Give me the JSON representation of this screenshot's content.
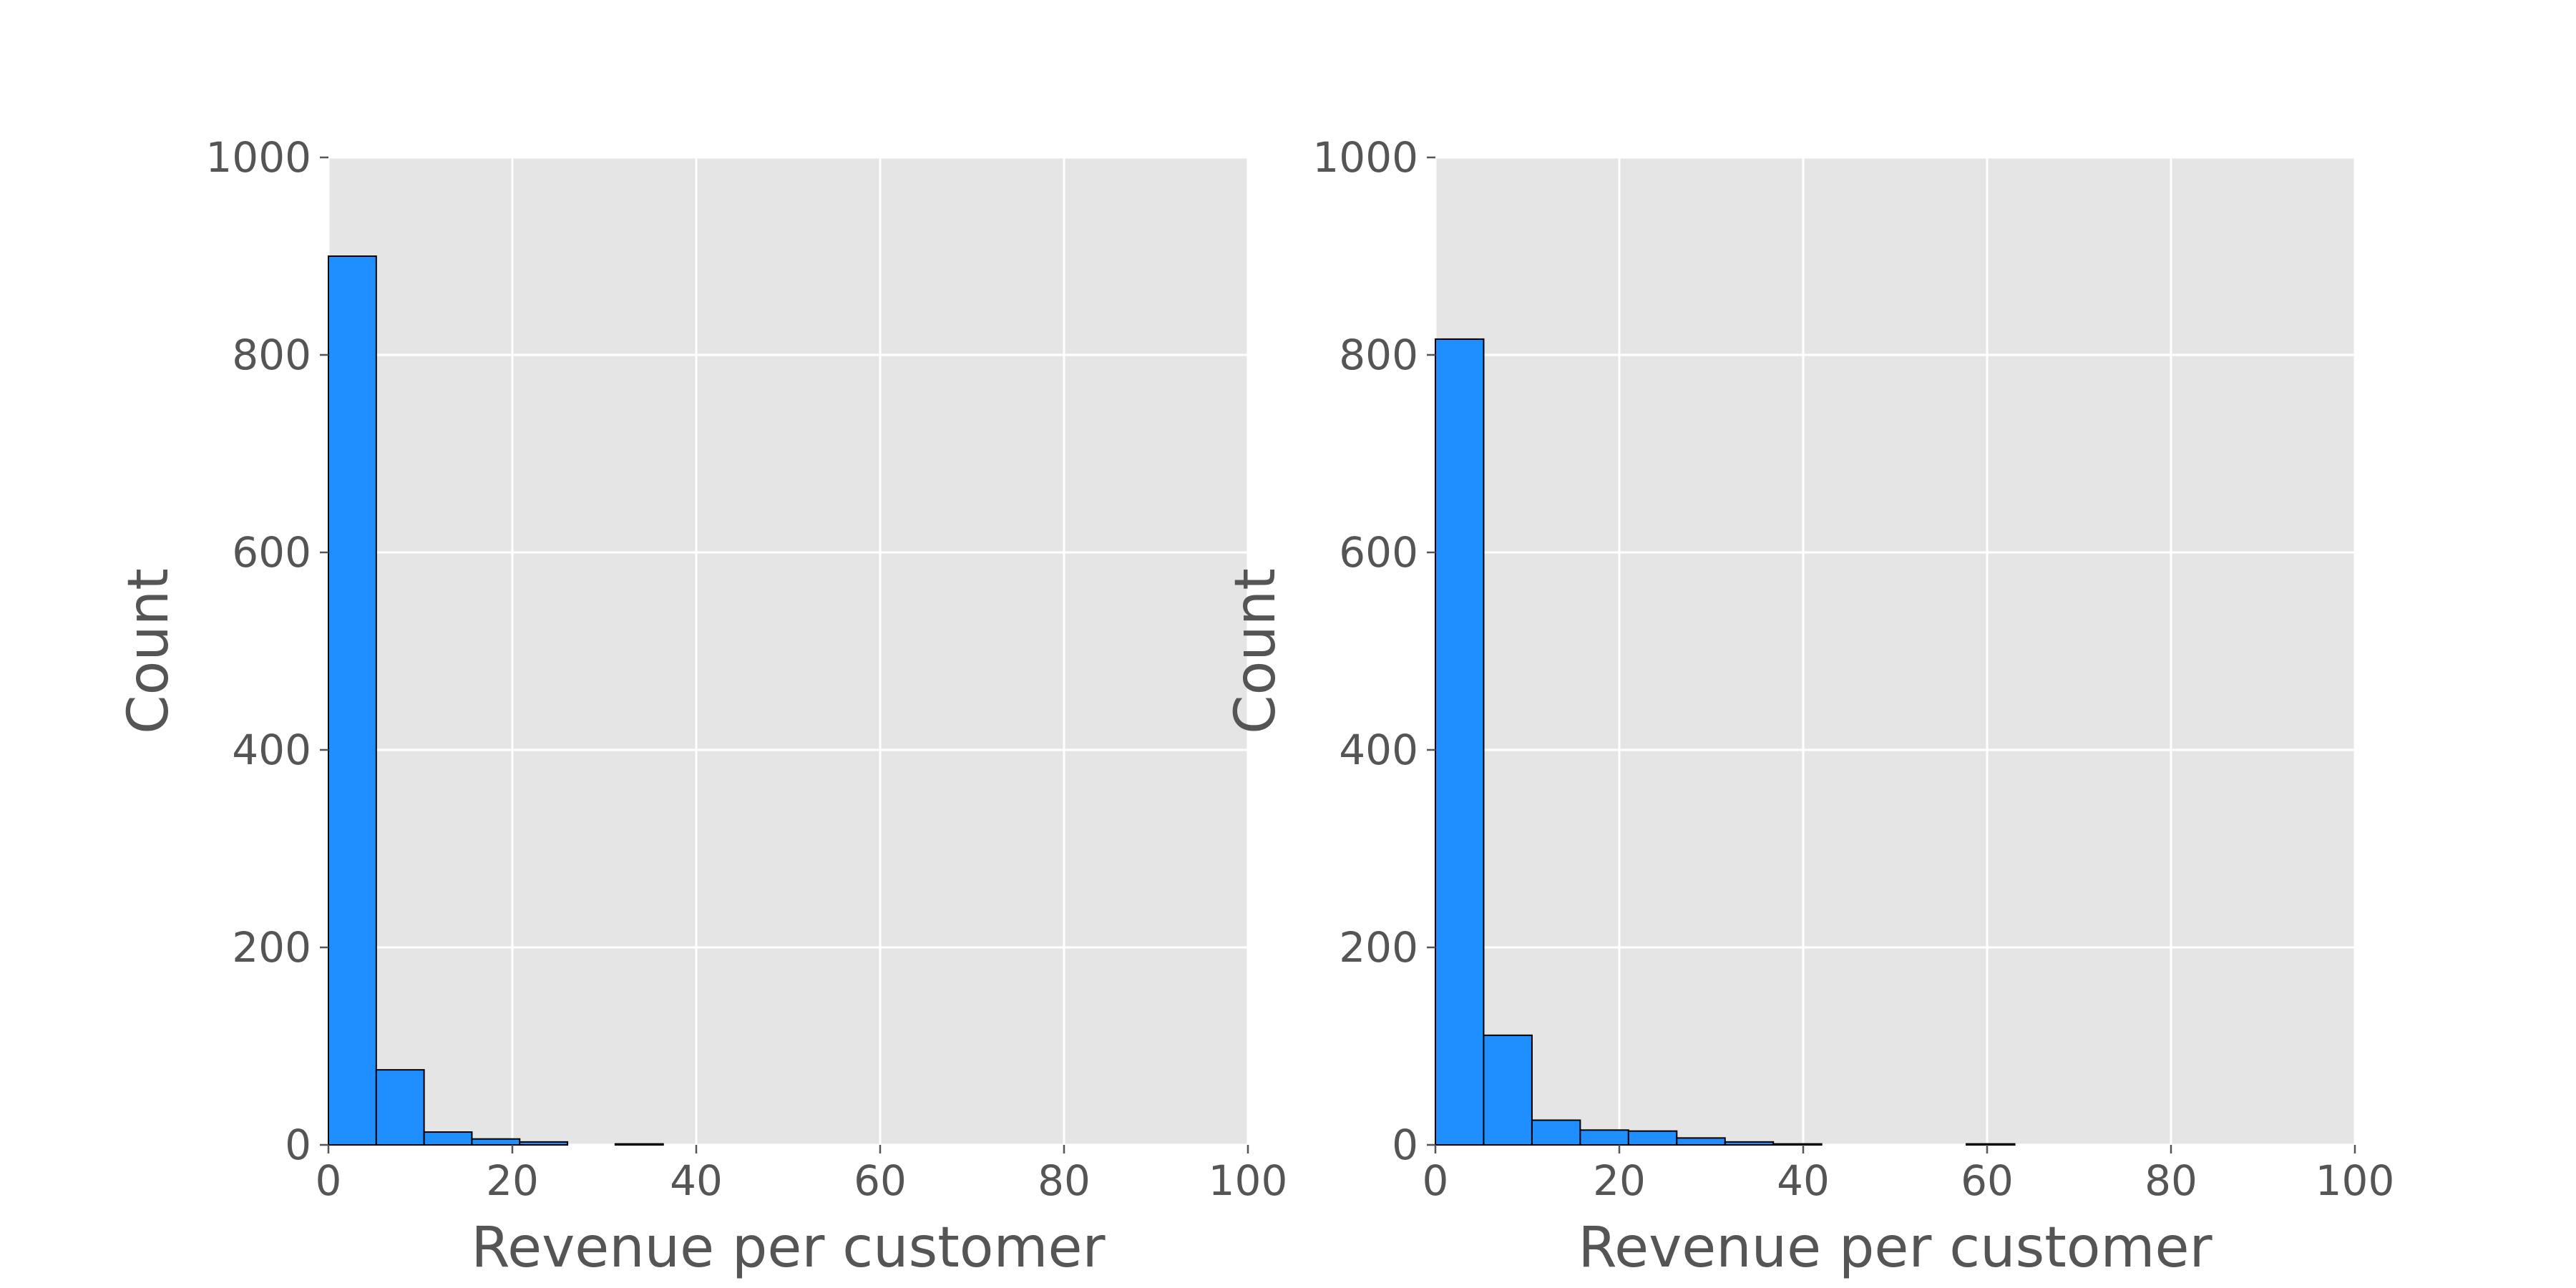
{
  "chart_data": [
    {
      "type": "histogram",
      "xlabel": "Revenue per customer",
      "ylabel": "Count",
      "xlim": [
        0,
        100
      ],
      "ylim": [
        0,
        1000
      ],
      "xticks": [
        0,
        20,
        40,
        60,
        80,
        100
      ],
      "yticks": [
        0,
        200,
        400,
        600,
        800,
        1000
      ],
      "bin_width": 5.2,
      "bins": [
        {
          "x0": 0.0,
          "x1": 5.2,
          "count": 900
        },
        {
          "x0": 5.2,
          "x1": 10.4,
          "count": 76
        },
        {
          "x0": 10.4,
          "x1": 15.6,
          "count": 13
        },
        {
          "x0": 15.6,
          "x1": 20.8,
          "count": 6
        },
        {
          "x0": 20.8,
          "x1": 26.0,
          "count": 3
        },
        {
          "x0": 26.0,
          "x1": 31.2,
          "count": 0
        },
        {
          "x0": 31.2,
          "x1": 36.4,
          "count": 1
        }
      ],
      "grid": true,
      "bar_color": "#1f8fff",
      "edge_color": "#000000"
    },
    {
      "type": "histogram",
      "xlabel": "Revenue per customer",
      "ylabel": "Count",
      "xlim": [
        0,
        100
      ],
      "ylim": [
        0,
        1000
      ],
      "xticks": [
        0,
        20,
        40,
        60,
        80,
        100
      ],
      "yticks": [
        0,
        200,
        400,
        600,
        800,
        1000
      ],
      "bin_width": 5.25,
      "bins": [
        {
          "x0": 0.0,
          "x1": 5.25,
          "count": 816
        },
        {
          "x0": 5.25,
          "x1": 10.5,
          "count": 111
        },
        {
          "x0": 10.5,
          "x1": 15.75,
          "count": 25
        },
        {
          "x0": 15.75,
          "x1": 21.0,
          "count": 15
        },
        {
          "x0": 21.0,
          "x1": 26.25,
          "count": 14
        },
        {
          "x0": 26.25,
          "x1": 31.5,
          "count": 7
        },
        {
          "x0": 31.5,
          "x1": 36.75,
          "count": 3
        },
        {
          "x0": 36.75,
          "x1": 42.0,
          "count": 1
        },
        {
          "x0": 42.0,
          "x1": 47.25,
          "count": 0
        },
        {
          "x0": 47.25,
          "x1": 52.5,
          "count": 0
        },
        {
          "x0": 52.5,
          "x1": 57.75,
          "count": 0
        },
        {
          "x0": 57.75,
          "x1": 63.0,
          "count": 1
        }
      ],
      "grid": true,
      "bar_color": "#1f8fff",
      "edge_color": "#000000"
    }
  ]
}
